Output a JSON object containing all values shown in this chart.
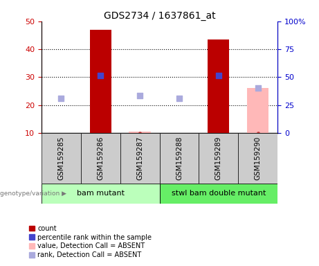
{
  "title": "GDS2734 / 1637861_at",
  "samples": [
    "GSM159285",
    "GSM159286",
    "GSM159287",
    "GSM159288",
    "GSM159289",
    "GSM159290"
  ],
  "count_values": [
    null,
    47.0,
    null,
    null,
    43.5,
    null
  ],
  "percentile_values": [
    null,
    30.5,
    null,
    null,
    30.5,
    null
  ],
  "absent_value_bars": [
    null,
    null,
    10.5,
    null,
    null,
    null
  ],
  "absent_rank_dots": [
    22.5,
    null,
    23.5,
    22.5,
    null,
    26.0
  ],
  "absent_value_bar_290": [
    null,
    null,
    null,
    null,
    null,
    26.0
  ],
  "ylim_left": [
    10,
    50
  ],
  "ylim_right": [
    0,
    100
  ],
  "yticks_left": [
    10,
    20,
    30,
    40,
    50
  ],
  "yticks_right": [
    0,
    25,
    50,
    75,
    100
  ],
  "yticklabels_right": [
    "0",
    "25",
    "50",
    "75",
    "100%"
  ],
  "group1_label": "bam mutant",
  "group2_label": "stwl bam double mutant",
  "group1_samples": [
    0,
    1,
    2
  ],
  "group2_samples": [
    3,
    4,
    5
  ],
  "bar_color_red": "#bb0000",
  "bar_color_pink": "#ffb8b8",
  "dot_color_blue": "#4444cc",
  "dot_color_lightblue": "#aaaadd",
  "group1_bg": "#bbffbb",
  "group2_bg": "#66ee66",
  "sample_box_bg": "#cccccc",
  "left_tick_color": "#cc0000",
  "right_tick_color": "#0000cc",
  "title_fontsize": 10,
  "tick_fontsize": 8,
  "sample_fontsize": 7.5,
  "group_fontsize": 8,
  "legend_fontsize": 7,
  "bar_width": 0.55,
  "dot_size": 35,
  "legend_label_count": "count",
  "legend_label_percentile": "percentile rank within the sample",
  "legend_label_absent_value": "value, Detection Call = ABSENT",
  "legend_label_absent_rank": "rank, Detection Call = ABSENT"
}
